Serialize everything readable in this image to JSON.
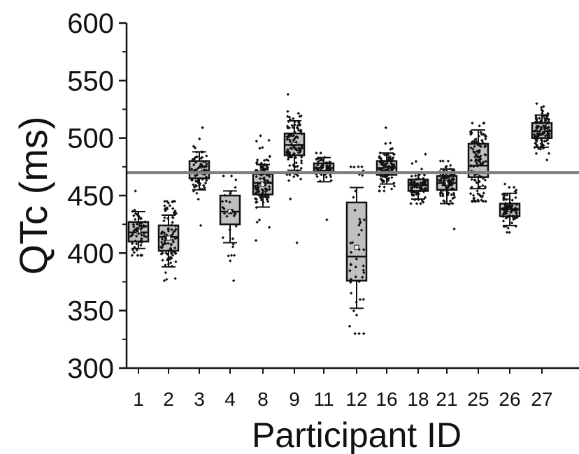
{
  "chart_data": {
    "type": "box",
    "ylabel": "QTc (ms)",
    "xlabel": "Participant ID",
    "ylim": [
      300,
      600
    ],
    "y_ticks": [
      300,
      350,
      400,
      450,
      500,
      550,
      600
    ],
    "grid": false,
    "reference_line": {
      "y": 470,
      "color": "#808080"
    },
    "box_fill": "#c0c0c0",
    "point_color": "#111111",
    "categories": [
      "1",
      "2",
      "3",
      "4",
      "8",
      "9",
      "11",
      "12",
      "16",
      "18",
      "21",
      "25",
      "26",
      "27"
    ],
    "boxes": [
      {
        "id": "1",
        "q1": 410,
        "median": 418,
        "q3": 427,
        "whisker_low": 404,
        "whisker_high": 436,
        "mean": 419,
        "min": 398,
        "max": 454,
        "n": 60
      },
      {
        "id": "2",
        "q1": 402,
        "median": 414,
        "q3": 424,
        "whisker_low": 388,
        "whisker_high": 433,
        "mean": 413,
        "min": 376,
        "max": 445,
        "n": 90
      },
      {
        "id": "3",
        "q1": 465,
        "median": 471,
        "q3": 480,
        "whisker_low": 455,
        "whisker_high": 488,
        "mean": 472,
        "min": 424,
        "max": 509,
        "n": 80
      },
      {
        "id": "4",
        "q1": 425,
        "median": 436,
        "q3": 450,
        "whisker_low": 409,
        "whisker_high": 454,
        "mean": 436,
        "min": 376,
        "max": 467,
        "n": 30
      },
      {
        "id": "8",
        "q1": 451,
        "median": 461,
        "q3": 469,
        "whisker_low": 440,
        "whisker_high": 477,
        "mean": 460,
        "min": 411,
        "max": 502,
        "n": 100
      },
      {
        "id": "9",
        "q1": 485,
        "median": 494,
        "q3": 504,
        "whisker_low": 472,
        "whisker_high": 515,
        "mean": 494,
        "min": 409,
        "max": 538,
        "n": 110
      },
      {
        "id": "11",
        "q1": 471,
        "median": 474,
        "q3": 478,
        "whisker_low": 462,
        "whisker_high": 483,
        "mean": 474,
        "min": 429,
        "max": 487,
        "n": 70
      },
      {
        "id": "12",
        "q1": 376,
        "median": 397,
        "q3": 444,
        "whisker_low": 352,
        "whisker_high": 457,
        "mean": 405,
        "min": 330,
        "max": 475,
        "n": 45
      },
      {
        "id": "16",
        "q1": 468,
        "median": 474,
        "q3": 480,
        "whisker_low": 460,
        "whisker_high": 487,
        "mean": 474,
        "min": 454,
        "max": 509,
        "n": 110
      },
      {
        "id": "18",
        "q1": 454,
        "median": 459,
        "q3": 464,
        "whisker_low": 447,
        "whisker_high": 470,
        "mean": 459,
        "min": 443,
        "max": 486,
        "n": 80
      },
      {
        "id": "21",
        "q1": 455,
        "median": 461,
        "q3": 467,
        "whisker_low": 443,
        "whisker_high": 473,
        "mean": 461,
        "min": 421,
        "max": 480,
        "n": 90
      },
      {
        "id": "25",
        "q1": 466,
        "median": 476,
        "q3": 495,
        "whisker_low": 456,
        "whisker_high": 507,
        "mean": 479,
        "min": 445,
        "max": 513,
        "n": 120
      },
      {
        "id": "26",
        "q1": 432,
        "median": 438,
        "q3": 443,
        "whisker_low": 424,
        "whisker_high": 452,
        "mean": 438,
        "min": 418,
        "max": 460,
        "n": 80
      },
      {
        "id": "27",
        "q1": 500,
        "median": 506,
        "q3": 513,
        "whisker_low": 492,
        "whisker_high": 520,
        "mean": 506,
        "min": 481,
        "max": 530,
        "n": 110
      }
    ]
  }
}
